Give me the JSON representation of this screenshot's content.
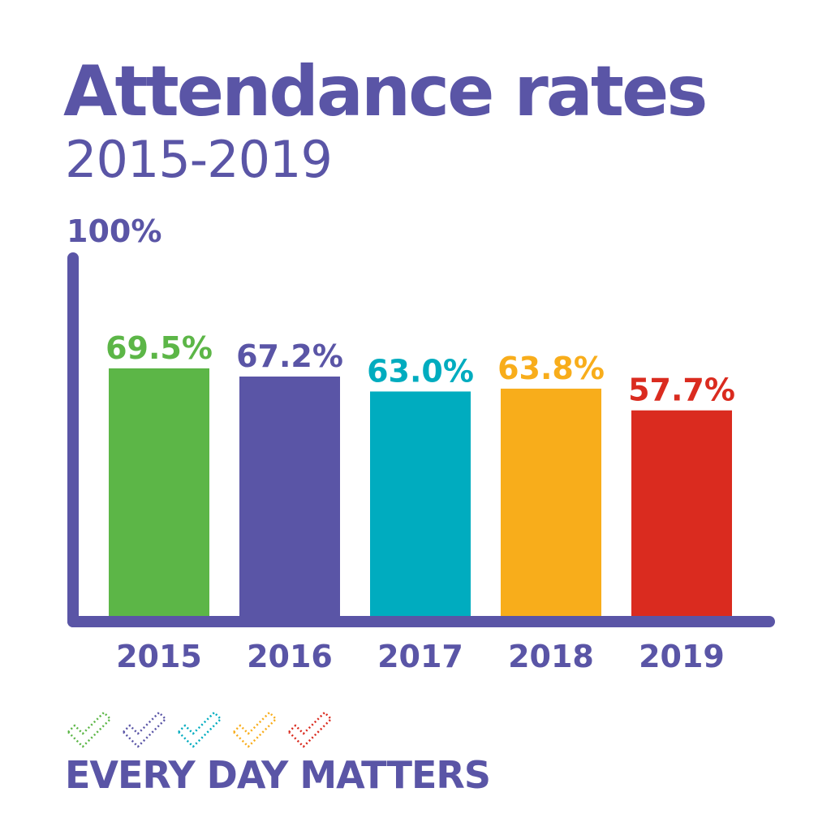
{
  "title": "Attendance rates",
  "subtitle": "2015-2019",
  "tagline": "EVERY DAY MATTERS",
  "brand_color": "#5a55a6",
  "chart_data": {
    "type": "bar",
    "title": "Attendance rates",
    "subtitle": "2015-2019",
    "categories": [
      "2015",
      "2016",
      "2017",
      "2018",
      "2019"
    ],
    "values": [
      69.5,
      67.2,
      63.0,
      63.8,
      57.7
    ],
    "data_labels": [
      "69.5%",
      "67.2%",
      "63.0%",
      "63.8%",
      "57.7%"
    ],
    "colors": [
      "#5cb647",
      "#5a55a6",
      "#00acbf",
      "#f8ad1b",
      "#da2b1f"
    ],
    "ylim": [
      0,
      100
    ],
    "y_max_label": "100%",
    "xlabel": "",
    "ylabel": "",
    "grid": false,
    "legend": "none"
  },
  "check_colors": [
    "#5cb647",
    "#5a55a6",
    "#00acbf",
    "#f8ad1b",
    "#da2b1f"
  ]
}
